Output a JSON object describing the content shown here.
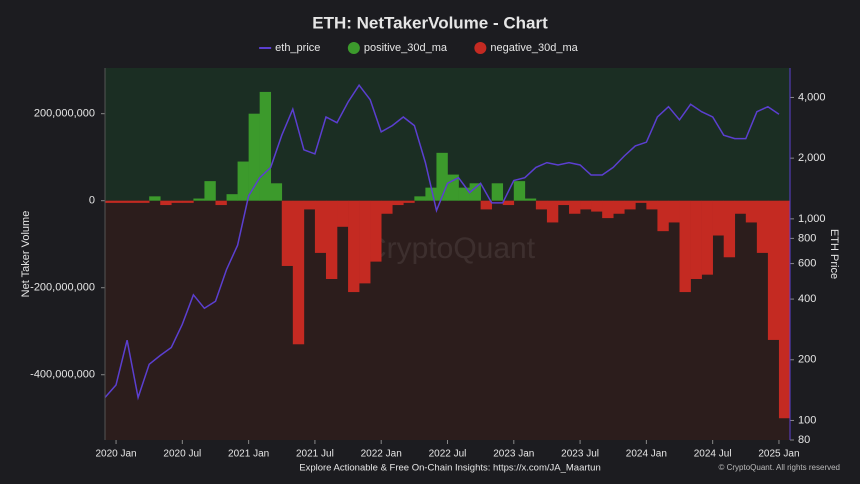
{
  "chart_data": {
    "type": "bar",
    "title": "ETH: NetTakerVolume - Chart",
    "y_label": "Net Taker Volume",
    "y2_label": "ETH Price",
    "footer": "Explore Actionable & Free On-Chain Insights: https://x.com/JA_Maartun",
    "copyright": "© CryptoQuant. All rights reserved",
    "watermark": "CryptoQuant",
    "x": [
      "2019-12",
      "2020-01",
      "2020-02",
      "2020-03",
      "2020-04",
      "2020-05",
      "2020-06",
      "2020-07",
      "2020-08",
      "2020-09",
      "2020-10",
      "2020-11",
      "2020-12",
      "2021-01",
      "2021-02",
      "2021-03",
      "2021-04",
      "2021-05",
      "2021-06",
      "2021-07",
      "2021-08",
      "2021-09",
      "2021-10",
      "2021-11",
      "2021-12",
      "2022-01",
      "2022-02",
      "2022-03",
      "2022-04",
      "2022-05",
      "2022-06",
      "2022-07",
      "2022-08",
      "2022-09",
      "2022-10",
      "2022-11",
      "2022-12",
      "2023-01",
      "2023-02",
      "2023-03",
      "2023-04",
      "2023-05",
      "2023-06",
      "2023-07",
      "2023-08",
      "2023-09",
      "2023-10",
      "2023-11",
      "2023-12",
      "2024-01",
      "2024-02",
      "2024-03",
      "2024-04",
      "2024-05",
      "2024-06",
      "2024-07",
      "2024-08",
      "2024-09",
      "2024-10",
      "2024-11",
      "2024-12",
      "2025-01"
    ],
    "xlim": [
      "2019-12",
      "2025-02"
    ],
    "xticks": [
      {
        "value": "2020-01",
        "label": "2020 Jan"
      },
      {
        "value": "2020-07",
        "label": "2020 Jul"
      },
      {
        "value": "2021-01",
        "label": "2021 Jan"
      },
      {
        "value": "2021-07",
        "label": "2021 Jul"
      },
      {
        "value": "2022-01",
        "label": "2022 Jan"
      },
      {
        "value": "2022-07",
        "label": "2022 Jul"
      },
      {
        "value": "2023-01",
        "label": "2023 Jan"
      },
      {
        "value": "2023-07",
        "label": "2023 Jul"
      },
      {
        "value": "2024-01",
        "label": "2024 Jan"
      },
      {
        "value": "2024-07",
        "label": "2024 Jul"
      },
      {
        "value": "2025-01",
        "label": "2025 Jan"
      }
    ],
    "ylim": [
      -550000000,
      305000000
    ],
    "yticks": [
      {
        "value": 200000000,
        "label": "200,000,000"
      },
      0,
      {
        "value": -200000000,
        "label": "-200,000,000"
      },
      {
        "value": -400000000,
        "label": "-400,000,000"
      }
    ],
    "y2lim": [
      80,
      5600
    ],
    "y2_log": true,
    "y2ticks": [
      {
        "value": 4000,
        "label": "4,000"
      },
      {
        "value": 2000,
        "label": "2,000"
      },
      {
        "value": 1000,
        "label": "1,000"
      },
      800,
      600,
      400,
      200,
      100,
      80
    ],
    "series": [
      {
        "name": "eth_price",
        "color": "#5b3fd0",
        "axis": "y2",
        "values": [
          130,
          150,
          250,
          130,
          190,
          210,
          230,
          300,
          420,
          360,
          390,
          560,
          740,
          1300,
          1600,
          1800,
          2600,
          3500,
          2200,
          2100,
          3200,
          3000,
          3800,
          4600,
          3900,
          2700,
          2900,
          3200,
          2900,
          1900,
          1100,
          1500,
          1600,
          1350,
          1500,
          1200,
          1200,
          1550,
          1600,
          1800,
          1900,
          1850,
          1900,
          1850,
          1650,
          1650,
          1800,
          2050,
          2300,
          2400,
          3200,
          3600,
          3100,
          3700,
          3400,
          3200,
          2600,
          2500,
          2500,
          3400,
          3600,
          3300
        ]
      },
      {
        "name": "positive_30d_ma",
        "color": "#3c9a2c",
        "values": [
          0,
          0,
          0,
          0,
          10000000,
          0,
          0,
          0,
          5000000,
          45000000,
          0,
          15000000,
          90000000,
          200000000,
          250000000,
          40000000,
          0,
          0,
          0,
          0,
          0,
          0,
          0,
          0,
          0,
          0,
          0,
          0,
          10000000,
          30000000,
          110000000,
          60000000,
          30000000,
          40000000,
          0,
          40000000,
          0,
          45000000,
          5000000,
          0,
          0,
          0,
          0,
          0,
          0,
          0,
          0,
          0,
          0,
          0,
          0,
          0,
          0,
          0,
          0,
          0,
          0,
          0,
          0,
          0,
          0,
          0
        ]
      },
      {
        "name": "negative_30d_ma",
        "color": "#c42a22",
        "values": [
          -5000000,
          -5000000,
          -5000000,
          -5000000,
          0,
          -10000000,
          -5000000,
          -5000000,
          0,
          0,
          -10000000,
          0,
          0,
          0,
          0,
          0,
          -150000000,
          -330000000,
          -20000000,
          -120000000,
          -180000000,
          -60000000,
          -210000000,
          -190000000,
          -140000000,
          -30000000,
          -10000000,
          -5000000,
          0,
          0,
          0,
          0,
          0,
          0,
          -20000000,
          0,
          -10000000,
          0,
          0,
          -20000000,
          -50000000,
          -10000000,
          -30000000,
          -20000000,
          -25000000,
          -40000000,
          -30000000,
          -20000000,
          -5000000,
          -20000000,
          -70000000,
          -50000000,
          -210000000,
          -180000000,
          -170000000,
          -80000000,
          -130000000,
          -30000000,
          -50000000,
          -120000000,
          -320000000,
          -500000000
        ]
      }
    ],
    "legend": "top"
  }
}
